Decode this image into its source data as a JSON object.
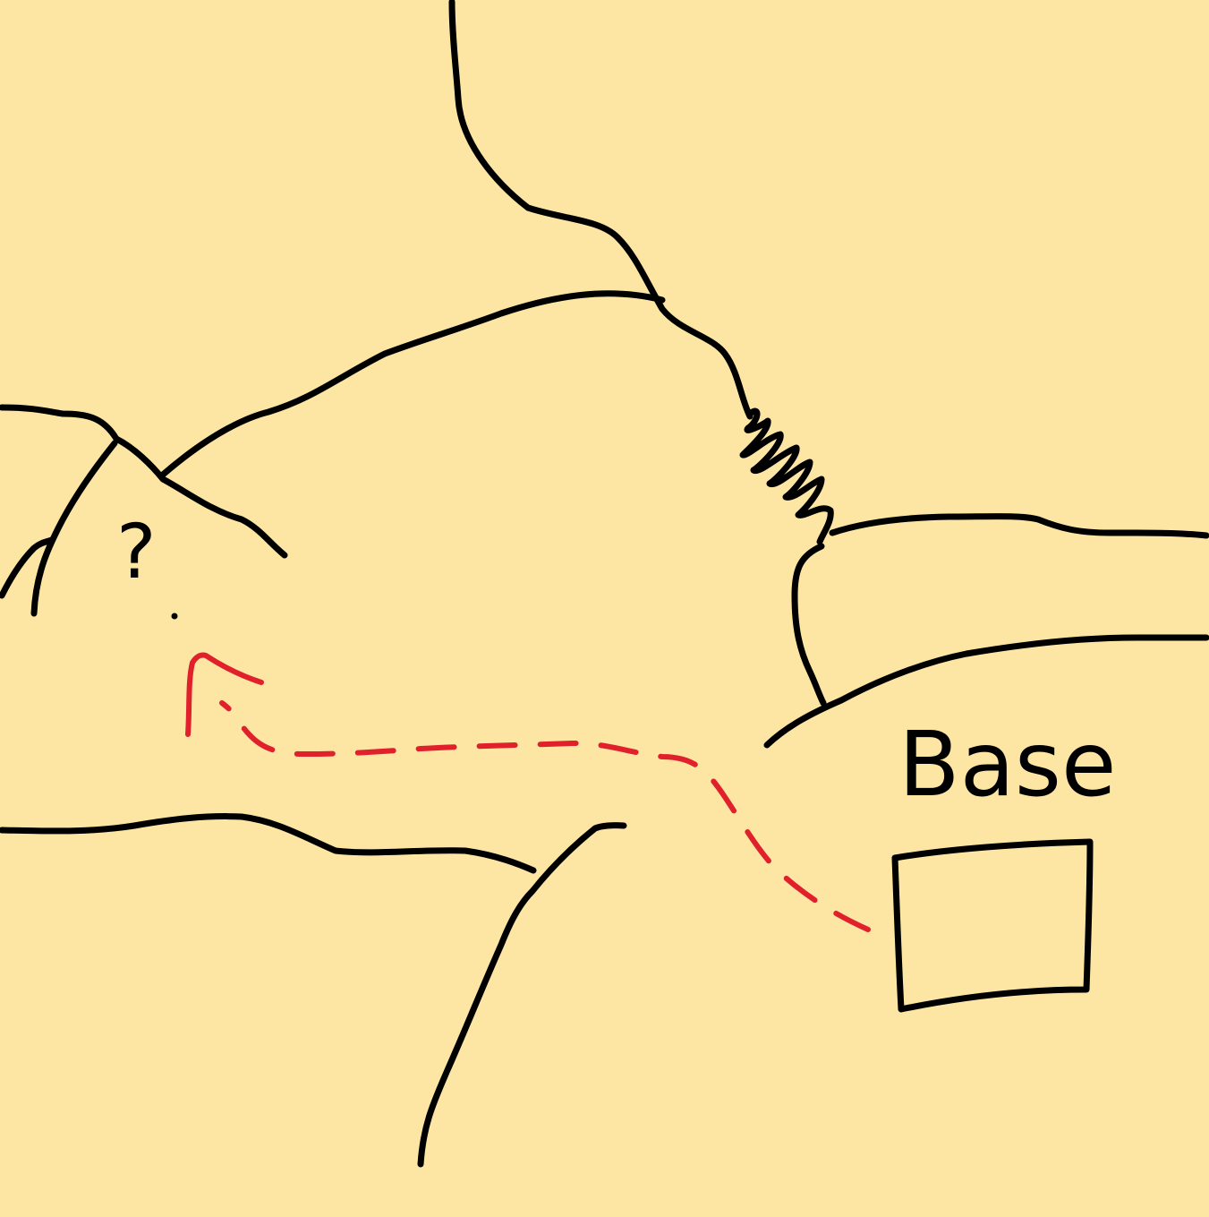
{
  "map": {
    "labels": {
      "base": "Base",
      "unknown_marker": "?"
    },
    "colors": {
      "background": "#FDE6A4",
      "ink": "#000000",
      "route": "#E0202A"
    },
    "features": [
      "base-building",
      "dashed-route-arrow",
      "spring-symbol",
      "terrain-lines"
    ]
  }
}
